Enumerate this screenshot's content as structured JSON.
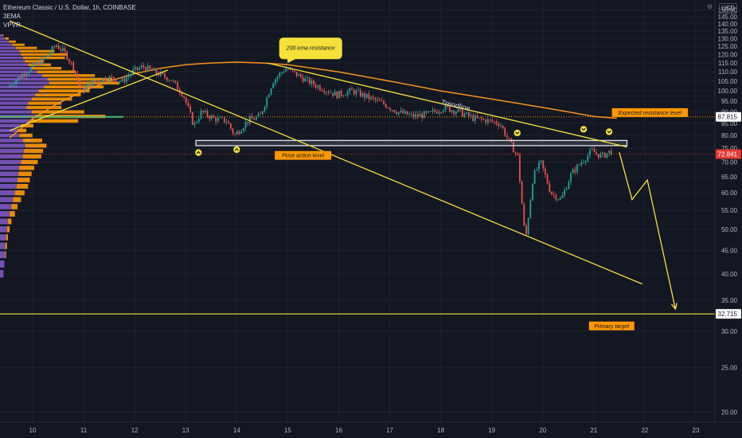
{
  "header": {
    "symbol_line": "Ethereum Classic / U.S. Dollar, 1h, COINBASE",
    "indicators": [
      "3EMA",
      "VPVR"
    ],
    "currency": "USD",
    "settings_icon": "gear-icon"
  },
  "colors": {
    "background": "#131722",
    "grid": "#1e222d",
    "axis_text": "#b2b5be",
    "candle_up": "#26a69a",
    "candle_down": "#ef5350",
    "vp_up": "#7e57c2",
    "vp_down": "#ff9800",
    "ema": "#f7931a",
    "annotation": "#f5e139",
    "poc": "#2dbd8f",
    "current_price": "#e53935"
  },
  "chart_data": {
    "type": "candlestick",
    "title": "Ethereum Classic / U.S. Dollar, 1h, COINBASE",
    "xlabel": "",
    "ylabel": "",
    "y_scale": "log",
    "ylim": [
      19,
      152
    ],
    "xlim": [
      9.55,
      23.3
    ],
    "grid": true,
    "y_ticks": [
      20,
      25,
      30,
      35,
      40,
      45,
      50,
      55,
      60,
      65,
      70,
      75,
      80,
      85,
      90,
      95,
      100,
      105,
      110,
      115,
      120,
      125,
      130,
      135,
      140,
      145,
      150
    ],
    "x_ticks": [
      {
        "x": 10,
        "label": "10"
      },
      {
        "x": 11,
        "label": "11"
      },
      {
        "x": 12,
        "label": "12"
      },
      {
        "x": 13,
        "label": "13"
      },
      {
        "x": 14,
        "label": "14"
      },
      {
        "x": 15,
        "label": "15"
      },
      {
        "x": 16,
        "label": "16"
      },
      {
        "x": 17,
        "label": "17"
      },
      {
        "x": 18,
        "label": "18"
      },
      {
        "x": 19,
        "label": "19"
      },
      {
        "x": 20,
        "label": "20"
      },
      {
        "x": 21,
        "label": "21"
      },
      {
        "x": 22,
        "label": "22"
      },
      {
        "x": 23,
        "label": "23"
      }
    ],
    "price_path": [
      [
        9.55,
        102
      ],
      [
        9.9,
        110
      ],
      [
        10.3,
        118
      ],
      [
        10.5,
        126
      ],
      [
        10.7,
        120
      ],
      [
        10.85,
        112
      ],
      [
        11.0,
        100
      ],
      [
        11.2,
        104
      ],
      [
        11.5,
        107
      ],
      [
        11.8,
        105
      ],
      [
        12.0,
        110
      ],
      [
        12.2,
        113
      ],
      [
        12.5,
        109
      ],
      [
        12.75,
        106
      ],
      [
        13.0,
        98
      ],
      [
        13.2,
        84
      ],
      [
        13.35,
        90
      ],
      [
        13.6,
        87
      ],
      [
        13.85,
        86
      ],
      [
        14.0,
        80
      ],
      [
        14.25,
        86
      ],
      [
        14.5,
        88
      ],
      [
        14.75,
        105
      ],
      [
        15.0,
        112
      ],
      [
        15.25,
        108
      ],
      [
        15.5,
        104
      ],
      [
        15.75,
        101
      ],
      [
        16.0,
        98
      ],
      [
        16.3,
        100
      ],
      [
        16.6,
        97
      ],
      [
        16.9,
        94
      ],
      [
        17.2,
        90
      ],
      [
        17.5,
        88
      ],
      [
        17.8,
        89
      ],
      [
        18.1,
        92
      ],
      [
        18.4,
        90
      ],
      [
        18.7,
        87
      ],
      [
        19.0,
        86
      ],
      [
        19.2,
        85
      ],
      [
        19.4,
        77
      ],
      [
        19.55,
        72
      ],
      [
        19.7,
        47
      ],
      [
        19.85,
        65
      ],
      [
        20.0,
        70
      ],
      [
        20.2,
        60
      ],
      [
        20.4,
        58
      ],
      [
        20.6,
        66
      ],
      [
        20.8,
        70
      ],
      [
        21.0,
        74
      ],
      [
        21.2,
        72
      ],
      [
        21.35,
        73.8
      ]
    ],
    "ema_200": [
      [
        9.55,
        79
      ],
      [
        10.0,
        87
      ],
      [
        10.5,
        94
      ],
      [
        11.0,
        100
      ],
      [
        11.5,
        105
      ],
      [
        12.0,
        109
      ],
      [
        12.5,
        112
      ],
      [
        13.0,
        114
      ],
      [
        13.5,
        115
      ],
      [
        14.0,
        115.5
      ],
      [
        14.5,
        115
      ],
      [
        15.0,
        114
      ],
      [
        15.5,
        112
      ],
      [
        16.0,
        110
      ],
      [
        16.5,
        107.5
      ],
      [
        17.0,
        105
      ],
      [
        17.5,
        102.5
      ],
      [
        18.0,
        100
      ],
      [
        18.5,
        98
      ],
      [
        19.0,
        96
      ],
      [
        19.5,
        94
      ],
      [
        20.0,
        92
      ],
      [
        20.5,
        90
      ],
      [
        21.0,
        88
      ],
      [
        21.45,
        87.2
      ]
    ],
    "current_price": 72.841,
    "levels": [
      {
        "price": 87.815,
        "label": "87.815",
        "style": "dotted-orange"
      },
      {
        "price": 72.841,
        "label": "72.841",
        "style": "dotted-red"
      },
      {
        "price": 32.715,
        "label": "32.715",
        "style": "solid-yellow"
      }
    ],
    "volume_profile": {
      "poc_price": 87.815,
      "rows": [
        {
          "price": 40,
          "up": 4,
          "down": 0
        },
        {
          "price": 42,
          "up": 5,
          "down": 0
        },
        {
          "price": 44,
          "up": 6,
          "down": 1
        },
        {
          "price": 46,
          "up": 6,
          "down": 2
        },
        {
          "price": 48,
          "up": 7,
          "down": 2
        },
        {
          "price": 50,
          "up": 8,
          "down": 3
        },
        {
          "price": 52,
          "up": 9,
          "down": 4
        },
        {
          "price": 54,
          "up": 11,
          "down": 6
        },
        {
          "price": 56,
          "up": 13,
          "down": 7
        },
        {
          "price": 58,
          "up": 15,
          "down": 9
        },
        {
          "price": 60,
          "up": 17,
          "down": 11
        },
        {
          "price": 62,
          "up": 19,
          "down": 13
        },
        {
          "price": 64,
          "up": 20,
          "down": 14
        },
        {
          "price": 66,
          "up": 21,
          "down": 15
        },
        {
          "price": 68,
          "up": 22,
          "down": 17
        },
        {
          "price": 70,
          "up": 24,
          "down": 19
        },
        {
          "price": 72,
          "up": 26,
          "down": 21
        },
        {
          "price": 74,
          "up": 27,
          "down": 22
        },
        {
          "price": 76,
          "up": 29,
          "down": 24
        },
        {
          "price": 78,
          "up": 26,
          "down": 22
        },
        {
          "price": 80,
          "up": 22,
          "down": 15
        },
        {
          "price": 82,
          "up": 20,
          "down": 10
        },
        {
          "price": 84,
          "up": 24,
          "down": 14
        },
        {
          "price": 86,
          "up": 34,
          "down": 55
        },
        {
          "price": 88,
          "up": 40,
          "down": 80
        },
        {
          "price": 90,
          "up": 36,
          "down": 60
        },
        {
          "price": 92,
          "up": 30,
          "down": 40
        },
        {
          "price": 94,
          "up": 32,
          "down": 38
        },
        {
          "price": 96,
          "up": 36,
          "down": 46
        },
        {
          "price": 98,
          "up": 40,
          "down": 52
        },
        {
          "price": 100,
          "up": 44,
          "down": 58
        },
        {
          "price": 102,
          "up": 50,
          "down": 68
        },
        {
          "price": 104,
          "up": 56,
          "down": 80
        },
        {
          "price": 106,
          "up": 54,
          "down": 74
        },
        {
          "price": 108,
          "up": 48,
          "down": 60
        },
        {
          "price": 110,
          "up": 42,
          "down": 44
        },
        {
          "price": 112,
          "up": 36,
          "down": 34
        },
        {
          "price": 114,
          "up": 32,
          "down": 26
        },
        {
          "price": 116,
          "up": 28,
          "down": 22
        },
        {
          "price": 118,
          "up": 26,
          "down": 48
        },
        {
          "price": 120,
          "up": 24,
          "down": 52
        },
        {
          "price": 122,
          "up": 22,
          "down": 40
        },
        {
          "price": 124,
          "up": 18,
          "down": 24
        },
        {
          "price": 126,
          "up": 14,
          "down": 14
        },
        {
          "price": 128,
          "up": 10,
          "down": 8
        },
        {
          "price": 130,
          "up": 6,
          "down": 4
        },
        {
          "price": 132,
          "up": 3,
          "down": 1
        }
      ]
    },
    "annotations": {
      "trendlines": [
        {
          "name": "major-downtrend-line",
          "from": [
            9.55,
            142
          ],
          "to": [
            21.95,
            38
          ]
        },
        {
          "name": "descending-resistance-trendline",
          "from": [
            14.6,
            115
          ],
          "to": [
            21.65,
            75.5
          ],
          "label": "Trendline"
        },
        {
          "name": "rising-support-line",
          "from": [
            9.55,
            82
          ],
          "to": [
            12.65,
            111
          ]
        }
      ],
      "projection_path": [
        [
          21.5,
          73.5
        ],
        [
          21.75,
          58
        ],
        [
          22.05,
          64
        ],
        [
          22.6,
          33.5
        ]
      ],
      "price_action_zone": {
        "from_x": 13.2,
        "to_x": 21.65,
        "low": 76,
        "high": 78
      },
      "callouts": [
        {
          "label": "200 ema resistance",
          "x": 15.45,
          "y": 124
        },
        {
          "label": "Expected resistance level",
          "x": 22.1,
          "y": 89.7
        },
        {
          "label": "Price action level",
          "x": 15.3,
          "y": 72.4
        },
        {
          "label": "Primary target",
          "x": 21.35,
          "y": 30.8
        }
      ],
      "markers": [
        {
          "x": 13.25,
          "y": 73.4,
          "direction": "up"
        },
        {
          "x": 14.0,
          "y": 74.5,
          "direction": "up"
        },
        {
          "x": 19.5,
          "y": 81,
          "direction": "down"
        },
        {
          "x": 20.8,
          "y": 82.5,
          "direction": "down"
        },
        {
          "x": 21.3,
          "y": 81.5,
          "direction": "down"
        }
      ]
    }
  }
}
